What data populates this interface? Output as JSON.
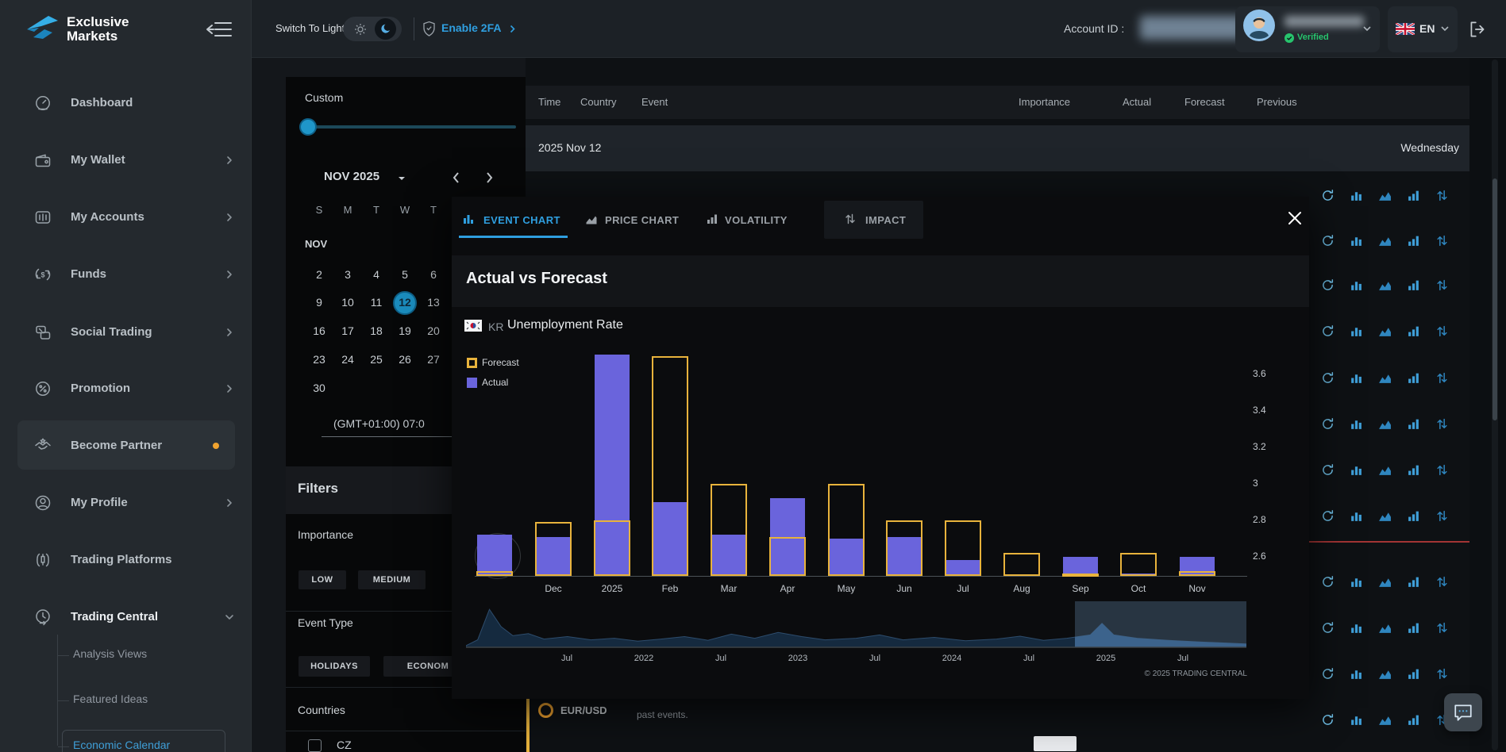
{
  "brand": {
    "line1": "Exclusive",
    "line2": "Markets"
  },
  "topbar": {
    "switch_label": "Switch To Light",
    "enable_2fa_label": "Enable 2FA",
    "account_id_label": "Account ID :",
    "verified_label": "Verified",
    "language": "EN"
  },
  "sidebar": {
    "items": [
      {
        "label": "Dashboard",
        "icon": "dashboard-icon"
      },
      {
        "label": "My Wallet",
        "icon": "wallet-icon",
        "chevron": "right"
      },
      {
        "label": "My Accounts",
        "icon": "accounts-icon",
        "chevron": "right"
      },
      {
        "label": "Funds",
        "icon": "funds-icon",
        "chevron": "right"
      },
      {
        "label": "Social Trading",
        "icon": "social-trading-icon",
        "chevron": "right"
      },
      {
        "label": "Promotion",
        "icon": "promotion-icon",
        "chevron": "right"
      },
      {
        "label": "Become Partner",
        "icon": "partner-icon",
        "highlighted": true,
        "dot": true
      },
      {
        "label": "My Profile",
        "icon": "profile-icon",
        "chevron": "right"
      },
      {
        "label": "Trading Platforms",
        "icon": "platforms-icon"
      },
      {
        "label": "Trading Central",
        "icon": "trading-central-icon",
        "chevron": "down",
        "expanded": true
      }
    ],
    "sub_items": [
      {
        "label": "Analysis Views"
      },
      {
        "label": "Featured Ideas"
      },
      {
        "label": "Economic Calendar",
        "active": true
      }
    ]
  },
  "date_panel": {
    "range_label": "Custom",
    "month_label": "NOV 2025",
    "month_short": "NOV",
    "day_headers": [
      "S",
      "M",
      "T",
      "W",
      "T",
      "F",
      "S"
    ],
    "weeks": [
      [
        "2",
        "3",
        "4",
        "5",
        "6",
        "7",
        "8"
      ],
      [
        "9",
        "10",
        "11",
        "12",
        "13",
        "14",
        "15"
      ],
      [
        "16",
        "17",
        "18",
        "19",
        "20",
        "21",
        "22"
      ],
      [
        "23",
        "24",
        "25",
        "26",
        "27",
        "28",
        "29"
      ],
      [
        "30",
        "",
        "",
        "",
        "",
        "",
        ""
      ]
    ],
    "selected_day": "12",
    "timezone": "(GMT+01:00) 07:0"
  },
  "filters": {
    "title": "Filters",
    "importance_label": "Importance",
    "importance_options": [
      "LOW",
      "MEDIUM"
    ],
    "event_type_label": "Event Type",
    "event_type_options": [
      "HOLIDAYS",
      "ECONOM"
    ],
    "countries_label": "Countries",
    "country_options": [
      "CZ"
    ]
  },
  "events_table": {
    "columns": [
      "Time",
      "Country",
      "Event",
      "Importance",
      "Actual",
      "Forecast",
      "Previous"
    ],
    "date_label": "2025 Nov 12",
    "weekday_label": "Wednesday",
    "row_symbol": "EUR/USD",
    "row_note": "past events."
  },
  "modal": {
    "tabs": [
      {
        "label": "EVENT CHART",
        "icon": "event-chart-icon",
        "active": true
      },
      {
        "label": "PRICE CHART",
        "icon": "price-chart-icon"
      },
      {
        "label": "VOLATILITY",
        "icon": "volatility-icon"
      },
      {
        "label": "IMPACT",
        "icon": "impact-icon"
      }
    ],
    "title": "Actual vs Forecast",
    "country_code": "KR",
    "event_name": "Unemployment Rate",
    "legend": [
      {
        "label": "Forecast",
        "style": "outline",
        "color": "#e8b33c"
      },
      {
        "label": "Actual",
        "style": "fill",
        "color": "#6a64dc"
      }
    ],
    "watermark": "TRADING CENTRAL",
    "copyright": "© 2025 TRADING CENTRAL"
  },
  "chart_data": {
    "type": "bar",
    "title": "Actual vs Forecast",
    "event": "KR Unemployment Rate",
    "categories": [
      "",
      "Dec",
      "2025",
      "Feb",
      "Mar",
      "Apr",
      "May",
      "Jun",
      "Jul",
      "Aug",
      "Sep",
      "Oct",
      "Nov"
    ],
    "series": [
      {
        "name": "Actual",
        "style": "fill",
        "color": "#6a64dc",
        "values": [
          2.72,
          2.71,
          3.71,
          2.9,
          2.72,
          2.92,
          2.7,
          2.71,
          2.58,
          2.5,
          2.6,
          2.51,
          2.6
        ]
      },
      {
        "name": "Forecast",
        "style": "outline",
        "color": "#e8b33c",
        "values": [
          2.52,
          2.79,
          2.8,
          3.7,
          3.0,
          2.71,
          3.0,
          2.8,
          2.8,
          2.62,
          2.51,
          2.62,
          2.52
        ]
      }
    ],
    "ylim": [
      2.5,
      3.75
    ],
    "yticks": [
      "3.6",
      "3.4",
      "3.2",
      "3",
      "2.8",
      "2.6"
    ],
    "yaxis_side": "right",
    "grid": false,
    "legend_position": "top-left",
    "navigator": {
      "labels": [
        "Jul",
        "2022",
        "Jul",
        "2023",
        "Jul",
        "2024",
        "Jul",
        "2025",
        "Jul"
      ],
      "selection": [
        0.78,
        1.0
      ],
      "points": [
        [
          0,
          0.04
        ],
        [
          0.015,
          0.18
        ],
        [
          0.03,
          0.92
        ],
        [
          0.045,
          0.5
        ],
        [
          0.06,
          0.28
        ],
        [
          0.08,
          0.33
        ],
        [
          0.1,
          0.2
        ],
        [
          0.13,
          0.26
        ],
        [
          0.16,
          0.18
        ],
        [
          0.19,
          0.22
        ],
        [
          0.22,
          0.15
        ],
        [
          0.25,
          0.2
        ],
        [
          0.28,
          0.26
        ],
        [
          0.31,
          0.17
        ],
        [
          0.34,
          0.32
        ],
        [
          0.37,
          0.22
        ],
        [
          0.4,
          0.36
        ],
        [
          0.43,
          0.26
        ],
        [
          0.46,
          0.18
        ],
        [
          0.5,
          0.22
        ],
        [
          0.53,
          0.3
        ],
        [
          0.56,
          0.18
        ],
        [
          0.6,
          0.24
        ],
        [
          0.64,
          0.16
        ],
        [
          0.68,
          0.2
        ],
        [
          0.71,
          0.27
        ],
        [
          0.74,
          0.17
        ],
        [
          0.77,
          0.22
        ],
        [
          0.8,
          0.3
        ],
        [
          0.815,
          0.58
        ],
        [
          0.83,
          0.3
        ],
        [
          0.86,
          0.22
        ],
        [
          0.9,
          0.17
        ],
        [
          0.94,
          0.13
        ],
        [
          1,
          0.08
        ]
      ]
    }
  },
  "colors": {
    "accent_blue": "#2f9fe0",
    "link_blue": "#3f9fd8",
    "selected_day": "#1b8cbd",
    "actual_purple": "#6a64dc",
    "forecast_yellow": "#e8b33c",
    "verified_green": "#27c46d",
    "notification_orange": "#f0a32f",
    "red_divider": "#a23434",
    "sidebar_bg": "#24292e",
    "topbar_bg": "#1c2126",
    "modal_bg": "#0b0c0e"
  }
}
